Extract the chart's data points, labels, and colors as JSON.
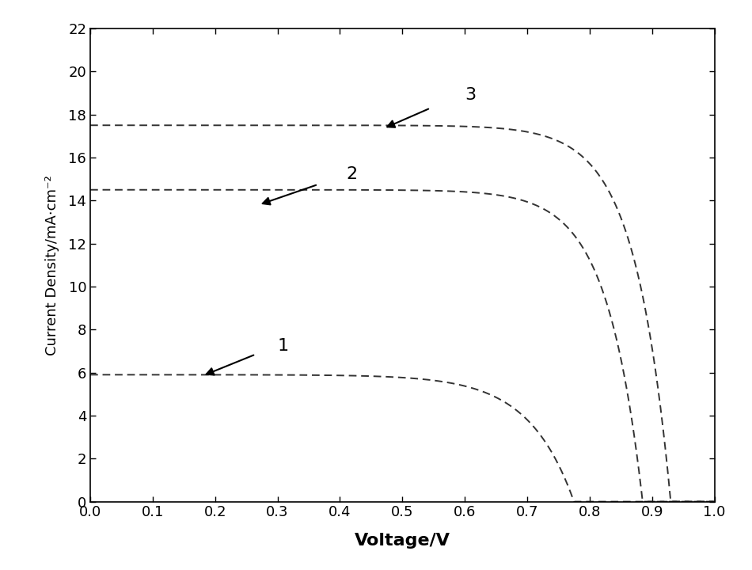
{
  "title": "",
  "xlabel": "Voltage/V",
  "ylabel": "Current Density/mA·cm⁻²",
  "xlim": [
    0.0,
    1.0
  ],
  "ylim": [
    0,
    22
  ],
  "xticks": [
    0.0,
    0.1,
    0.2,
    0.3,
    0.4,
    0.5,
    0.6,
    0.7,
    0.8,
    0.9,
    1.0
  ],
  "yticks": [
    0,
    2,
    4,
    6,
    8,
    10,
    12,
    14,
    16,
    18,
    20,
    22
  ],
  "curve1": {
    "Jsc": 5.9,
    "Voc": 0.775,
    "n": 2.8,
    "label": "1"
  },
  "curve2": {
    "Jsc": 14.5,
    "Voc": 0.885,
    "n": 2.2,
    "label": "2"
  },
  "curve3": {
    "Jsc": 17.5,
    "Voc": 0.93,
    "n": 2.2,
    "label": "3"
  },
  "line_color": "#333333",
  "line_style": "--",
  "line_width": 1.4,
  "bg_color": "#ffffff",
  "xlabel_fontsize": 16,
  "ylabel_fontsize": 13,
  "tick_fontsize": 13,
  "label_fontsize": 16,
  "arrow_fontsize": 16
}
